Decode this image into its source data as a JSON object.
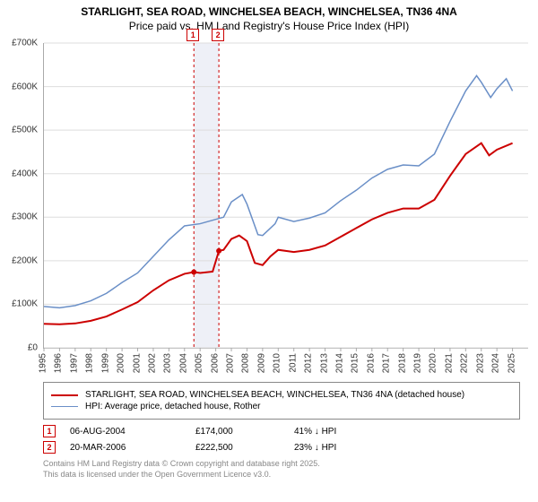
{
  "title_line1": "STARLIGHT, SEA ROAD, WINCHELSEA BEACH, WINCHELSEA, TN36 4NA",
  "title_line2": "Price paid vs. HM Land Registry's House Price Index (HPI)",
  "chart": {
    "type": "line",
    "background_color": "#ffffff",
    "grid_color": "#dddddd",
    "axis_color": "#aaaaaa",
    "xlim": [
      1995,
      2026
    ],
    "ylim": [
      0,
      700000
    ],
    "ytick_step": 100000,
    "yticks": [
      "£0",
      "£100K",
      "£200K",
      "£300K",
      "£400K",
      "£500K",
      "£600K",
      "£700K"
    ],
    "xticks": [
      1995,
      1996,
      1997,
      1998,
      1999,
      2000,
      2001,
      2002,
      2003,
      2004,
      2005,
      2006,
      2007,
      2008,
      2009,
      2010,
      2011,
      2012,
      2013,
      2014,
      2015,
      2016,
      2017,
      2018,
      2019,
      2020,
      2021,
      2022,
      2023,
      2024,
      2025
    ],
    "series": [
      {
        "name": "property",
        "label": "STARLIGHT, SEA ROAD, WINCHELSEA BEACH, WINCHELSEA, TN36 4NA (detached house)",
        "color": "#cc0000",
        "line_width": 2,
        "points": [
          [
            1995,
            55000
          ],
          [
            1996,
            54000
          ],
          [
            1997,
            56000
          ],
          [
            1998,
            62000
          ],
          [
            1999,
            72000
          ],
          [
            2000,
            88000
          ],
          [
            2001,
            105000
          ],
          [
            2002,
            132000
          ],
          [
            2003,
            155000
          ],
          [
            2004,
            170000
          ],
          [
            2004.6,
            174000
          ],
          [
            2005,
            172000
          ],
          [
            2005.8,
            175000
          ],
          [
            2006.2,
            222500
          ],
          [
            2006.5,
            225000
          ],
          [
            2007,
            250000
          ],
          [
            2007.5,
            258000
          ],
          [
            2008,
            245000
          ],
          [
            2008.5,
            195000
          ],
          [
            2009,
            190000
          ],
          [
            2009.5,
            210000
          ],
          [
            2010,
            225000
          ],
          [
            2011,
            220000
          ],
          [
            2012,
            225000
          ],
          [
            2013,
            235000
          ],
          [
            2014,
            255000
          ],
          [
            2015,
            275000
          ],
          [
            2016,
            295000
          ],
          [
            2017,
            310000
          ],
          [
            2018,
            320000
          ],
          [
            2019,
            320000
          ],
          [
            2020,
            340000
          ],
          [
            2021,
            395000
          ],
          [
            2022,
            445000
          ],
          [
            2023,
            470000
          ],
          [
            2023.5,
            442000
          ],
          [
            2024,
            455000
          ],
          [
            2025,
            470000
          ]
        ]
      },
      {
        "name": "hpi",
        "label": "HPI: Average price, detached house, Rother",
        "color": "#6a8fc7",
        "line_width": 1.5,
        "points": [
          [
            1995,
            95000
          ],
          [
            1996,
            92000
          ],
          [
            1997,
            97000
          ],
          [
            1998,
            108000
          ],
          [
            1999,
            125000
          ],
          [
            2000,
            150000
          ],
          [
            2001,
            172000
          ],
          [
            2002,
            210000
          ],
          [
            2003,
            248000
          ],
          [
            2004,
            280000
          ],
          [
            2005,
            285000
          ],
          [
            2006,
            295000
          ],
          [
            2006.5,
            300000
          ],
          [
            2007,
            335000
          ],
          [
            2007.7,
            352000
          ],
          [
            2008,
            330000
          ],
          [
            2008.7,
            260000
          ],
          [
            2009,
            258000
          ],
          [
            2009.8,
            285000
          ],
          [
            2010,
            300000
          ],
          [
            2011,
            290000
          ],
          [
            2012,
            298000
          ],
          [
            2013,
            310000
          ],
          [
            2014,
            338000
          ],
          [
            2015,
            362000
          ],
          [
            2016,
            390000
          ],
          [
            2017,
            410000
          ],
          [
            2018,
            420000
          ],
          [
            2019,
            418000
          ],
          [
            2020,
            445000
          ],
          [
            2021,
            520000
          ],
          [
            2022,
            590000
          ],
          [
            2022.7,
            625000
          ],
          [
            2023,
            610000
          ],
          [
            2023.6,
            575000
          ],
          [
            2024,
            595000
          ],
          [
            2024.6,
            618000
          ],
          [
            2025,
            590000
          ]
        ]
      }
    ],
    "sale_markers": [
      {
        "num": "1",
        "year": 2004.6,
        "band_color": "#eef0f7"
      },
      {
        "num": "2",
        "year": 2006.2,
        "band_color": "#eef0f7"
      }
    ],
    "marker_line_color": "#cc0000",
    "marker_line_dash": "3,3",
    "band_between_sales": {
      "from": 2004.6,
      "to": 2006.2,
      "fill": "#eef0f7"
    }
  },
  "legend": {
    "border_color": "#888888",
    "rows": [
      {
        "color": "#cc0000",
        "width": 2,
        "text": "STARLIGHT, SEA ROAD, WINCHELSEA BEACH, WINCHELSEA, TN36 4NA (detached house)"
      },
      {
        "color": "#6a8fc7",
        "width": 1.5,
        "text": "HPI: Average price, detached house, Rother"
      }
    ]
  },
  "sales_table": {
    "rows": [
      {
        "num": "1",
        "date": "06-AUG-2004",
        "price": "£174,000",
        "delta": "41% ↓ HPI"
      },
      {
        "num": "2",
        "date": "20-MAR-2006",
        "price": "£222,500",
        "delta": "23% ↓ HPI"
      }
    ]
  },
  "credit_line1": "Contains HM Land Registry data © Crown copyright and database right 2025.",
  "credit_line2": "This data is licensed under the Open Government Licence v3.0."
}
